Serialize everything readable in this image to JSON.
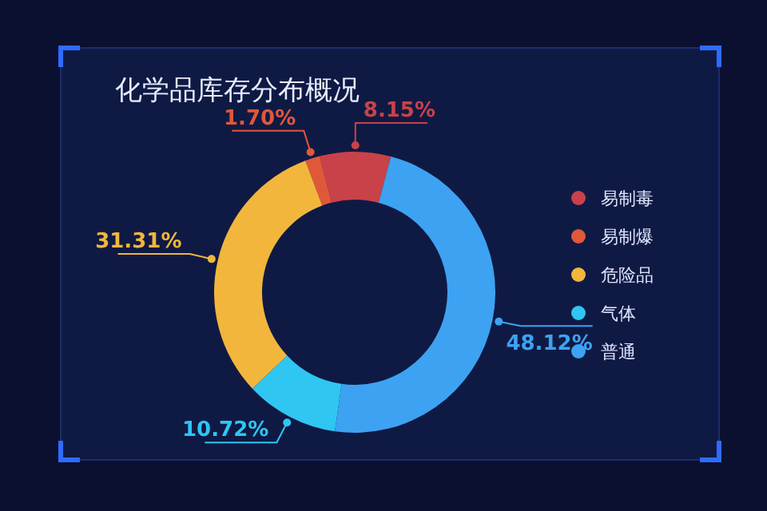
{
  "chart_data": {
    "type": "donut",
    "title": "化学品库存分布概况",
    "categories": [
      "易制毒",
      "易制爆",
      "危险品",
      "气体",
      "普通"
    ],
    "values": [
      8.15,
      1.7,
      31.31,
      10.72,
      48.12
    ],
    "value_labels": [
      "8.15%",
      "1.70%",
      "31.31%",
      "10.72%",
      "48.12%"
    ],
    "colors": [
      "#c9424a",
      "#e0583a",
      "#f2b63d",
      "#2fc6f2",
      "#3da2f2"
    ],
    "legend": "right"
  }
}
